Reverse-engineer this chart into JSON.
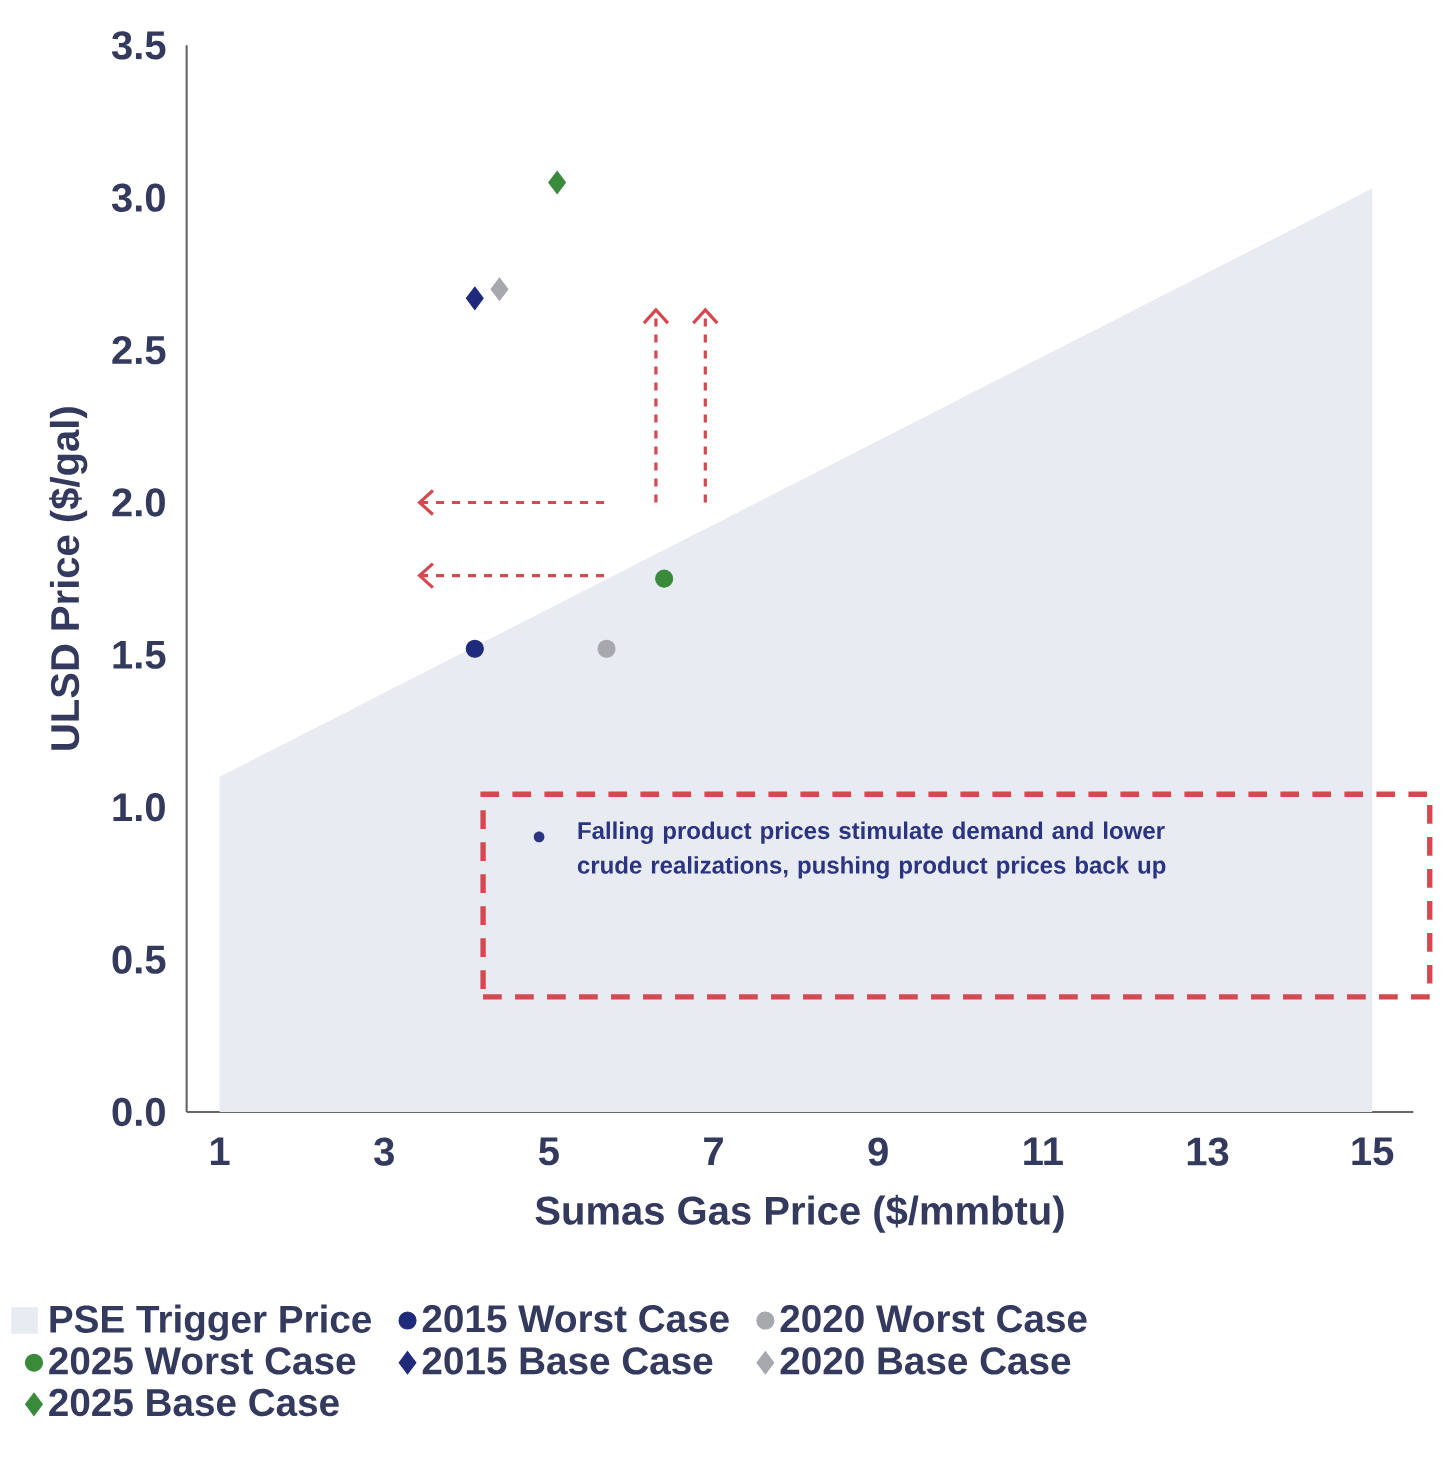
{
  "chart_data": {
    "type": "scatter",
    "xlabel": "Sumas Gas Price ($/mmbtu)",
    "ylabel": "ULSD Price ($/gal)",
    "xlim": [
      0.6,
      15.5
    ],
    "ylim": [
      0,
      3.5
    ],
    "xticks": [
      1,
      3,
      5,
      7,
      9,
      11,
      13,
      15
    ],
    "yticks": [
      {
        "value": 0,
        "label": "0.0"
      },
      0.5,
      {
        "value": 1,
        "label": "1.0"
      },
      1.5,
      {
        "value": 2,
        "label": "2.0"
      },
      2.5,
      {
        "value": 3,
        "label": "3.0"
      },
      3.5
    ],
    "legend": "bottom",
    "annotations": [
      "Falling product prices stimulate demand and lower crude realizations, pushing product prices back up"
    ],
    "series": [
      {
        "name": "PSE Trigger Price",
        "type": "area",
        "color": "#e8ecf2",
        "x": [
          1,
          15
        ],
        "values": [
          1.1,
          3.03
        ]
      },
      {
        "name": "2015 Worst Case",
        "marker": "circle",
        "color": "#1f2a7a",
        "x": [
          4.1
        ],
        "values": [
          1.52
        ]
      },
      {
        "name": "2020 Worst Case",
        "marker": "circle",
        "color": "#a6a8ae",
        "x": [
          5.7
        ],
        "values": [
          1.52
        ]
      },
      {
        "name": "2025 Worst Case",
        "marker": "circle",
        "color": "#3a8a3c",
        "x": [
          6.4
        ],
        "values": [
          1.75
        ]
      },
      {
        "name": "2015 Base Case",
        "marker": "diamond",
        "color": "#1f2a7a",
        "x": [
          4.1
        ],
        "values": [
          2.67
        ]
      },
      {
        "name": "2020 Base Case",
        "marker": "diamond",
        "color": "#a6a8ae",
        "x": [
          4.4
        ],
        "values": [
          2.7
        ]
      },
      {
        "name": "2025 Base Case",
        "marker": "diamond",
        "color": "#3a8a3c",
        "x": [
          5.1
        ],
        "values": [
          3.05
        ]
      }
    ]
  }
}
